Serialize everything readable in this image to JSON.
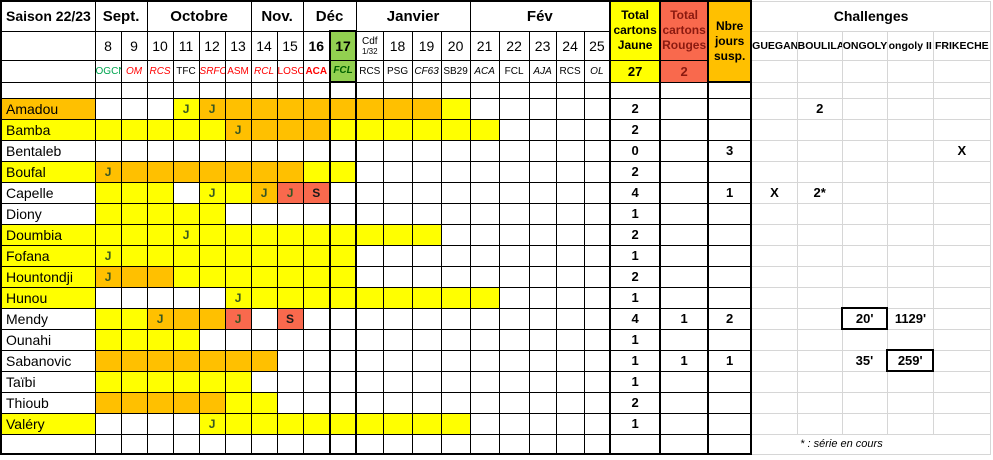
{
  "title": "Saison 22/23",
  "footnote": "* : série en cours",
  "colors": {
    "yellow": "#ffff00",
    "orange": "#ffc000",
    "red_cell": "#f9694d",
    "green_cell": "#92d050",
    "text_green": "#00a550",
    "text_red": "#ff0000",
    "text_darkgreen": "#006100",
    "text_maroon": "#8b1a10",
    "text_jglyph": "#375623"
  },
  "months": [
    {
      "label": "Sept.",
      "span": 2
    },
    {
      "label": "Octobre",
      "span": 4
    },
    {
      "label": "Nov.",
      "span": 2
    },
    {
      "label": "Déc",
      "span": 2
    },
    {
      "label": "Janvier",
      "span": 4
    },
    {
      "label": "Fév",
      "span": 5
    }
  ],
  "columns": [
    {
      "date": "8",
      "opp": "OGCN",
      "opp_color": "green"
    },
    {
      "date": "9",
      "opp": "OM",
      "opp_color": "red",
      "opp_italic": true
    },
    {
      "date": "10",
      "opp": "RCS",
      "opp_color": "red",
      "opp_italic": true
    },
    {
      "date": "11",
      "opp": "TFC",
      "opp_color": "black"
    },
    {
      "date": "12",
      "opp": "SRFC",
      "opp_color": "red",
      "opp_italic": true
    },
    {
      "date": "13",
      "opp": "ASM",
      "opp_color": "red"
    },
    {
      "date": "14",
      "opp": "RCL",
      "opp_color": "red",
      "opp_italic": true
    },
    {
      "date": "15",
      "opp": "LOSC",
      "opp_color": "red"
    },
    {
      "date": "16",
      "date_bold": true,
      "opp": "ACA",
      "opp_color": "red",
      "opp_bold": true
    },
    {
      "date": "17",
      "date_bold": true,
      "green": true,
      "opp": "FCL",
      "opp_color": "darkgreen",
      "opp_italic": true,
      "opp_bold": true
    },
    {
      "date": "Cdf",
      "date_sub": "1/32",
      "opp": "RCS",
      "opp_color": "black"
    },
    {
      "date": "18",
      "opp": "PSG",
      "opp_color": "black"
    },
    {
      "date": "19",
      "opp": "CF63",
      "opp_color": "black",
      "opp_italic": true
    },
    {
      "date": "20",
      "opp": "SB29",
      "opp_color": "black"
    },
    {
      "date": "21",
      "opp": "ACA",
      "opp_color": "black",
      "opp_italic": true
    },
    {
      "date": "22",
      "opp": "FCL",
      "opp_color": "black"
    },
    {
      "date": "23",
      "opp": "AJA",
      "opp_color": "black",
      "opp_italic": true
    },
    {
      "date": "24",
      "opp": "RCS",
      "opp_color": "black"
    },
    {
      "date": "25",
      "opp": "OL",
      "opp_color": "black",
      "opp_italic": true
    }
  ],
  "totals": {
    "jaune_header": "Total cartons Jaune",
    "rouges_header": "Total cartons Rouges",
    "nbre_header": "Nbre jours susp.",
    "jaune_total": "27",
    "rouges_total": "2"
  },
  "challenges": {
    "title": "Challenges",
    "labels": [
      "GUEGAN",
      "BOULILA",
      "ONGOLY I",
      "ongoly II",
      "FRIKECHE"
    ]
  },
  "players": [
    {
      "name": "Amadou",
      "name_bg": "o",
      "cells": "w w w yJ oJ o o o o o o o o y w w w w w",
      "jaune": "2",
      "rouges": "",
      "susp": "",
      "chal": [
        "",
        "2",
        "",
        "",
        ""
      ],
      "boxed": -1
    },
    {
      "name": "Bamba",
      "name_bg": "y",
      "cells": "y y y y y oJ o o o y y y y y y w w w w",
      "jaune": "2",
      "rouges": "",
      "susp": "",
      "chal": [
        "",
        "",
        "",
        "",
        ""
      ],
      "boxed": -1
    },
    {
      "name": "Bentaleb",
      "name_bg": "w",
      "cells": "w w w w w w w w w w w w w w w w w w w",
      "jaune": "0",
      "rouges": "",
      "susp": "3",
      "chal": [
        "",
        "",
        "",
        "",
        "X"
      ],
      "boxed": -1
    },
    {
      "name": "Boufal",
      "name_bg": "y",
      "cells": "oJ o o o o o o o y y w w w w w w w w w",
      "jaune": "2",
      "rouges": "",
      "susp": "",
      "chal": [
        "",
        "",
        "",
        "",
        ""
      ],
      "boxed": -1
    },
    {
      "name": "Capelle",
      "name_bg": "w",
      "cells": "y y y w yJ y oJ rJ rS w w w w w w w w w w",
      "jaune": "4",
      "rouges": "",
      "susp": "1",
      "chal": [
        "X",
        "2*",
        "",
        "",
        ""
      ],
      "boxed": -1
    },
    {
      "name": "Diony",
      "name_bg": "w",
      "cells": "y y y y y w w w w w w w w w w w w w w",
      "jaune": "1",
      "rouges": "",
      "susp": "",
      "chal": [
        "",
        "",
        "",
        "",
        ""
      ],
      "boxed": -1
    },
    {
      "name": "Doumbia",
      "name_bg": "y",
      "cells": "y y y yJ y y y y y y y y y w w w w w w",
      "jaune": "2",
      "rouges": "",
      "susp": "",
      "chal": [
        "",
        "",
        "",
        "",
        ""
      ],
      "boxed": -1
    },
    {
      "name": "Fofana",
      "name_bg": "y",
      "cells": "yJ y y y y y y y y y w w w w w w w w w",
      "jaune": "1",
      "rouges": "",
      "susp": "",
      "chal": [
        "",
        "",
        "",
        "",
        ""
      ],
      "boxed": -1
    },
    {
      "name": "Hountondji",
      "name_bg": "y",
      "cells": "oJ o o y y y y y y y w w w w w w w w w",
      "jaune": "2",
      "rouges": "",
      "susp": "",
      "chal": [
        "",
        "",
        "",
        "",
        ""
      ],
      "boxed": -1
    },
    {
      "name": "Hunou",
      "name_bg": "y",
      "cells": "w w w w w yJ y y y y y y y y y w w w w",
      "jaune": "1",
      "rouges": "",
      "susp": "",
      "chal": [
        "",
        "",
        "",
        "",
        ""
      ],
      "boxed": -1
    },
    {
      "name": "Mendy",
      "name_bg": "w",
      "cells": "y y oJ o o rJ w rS w w w w w w w w w w w",
      "jaune": "4",
      "rouges": "1",
      "susp": "2",
      "chal": [
        "",
        "",
        "20'",
        "1129'",
        ""
      ],
      "boxed": 2
    },
    {
      "name": "Ounahi",
      "name_bg": "w",
      "cells": "y y y y w w w w w w w w w w w w w w w",
      "jaune": "1",
      "rouges": "",
      "susp": "",
      "chal": [
        "",
        "",
        "",
        "",
        ""
      ],
      "boxed": -1
    },
    {
      "name": "Sabanovic",
      "name_bg": "w",
      "cells": "o o o o o o o w w w w w w w w w w w w",
      "jaune": "1",
      "rouges": "1",
      "susp": "1",
      "chal": [
        "",
        "",
        "35'",
        "259'",
        ""
      ],
      "boxed": 3
    },
    {
      "name": "Taïbi",
      "name_bg": "w",
      "cells": "y y y y y y w w w w w w w w w w w w w",
      "jaune": "1",
      "rouges": "",
      "susp": "",
      "chal": [
        "",
        "",
        "",
        "",
        ""
      ],
      "boxed": -1
    },
    {
      "name": "Thioub",
      "name_bg": "w",
      "cells": "o o o o o y y w w w w w w w w w w w w",
      "jaune": "2",
      "rouges": "",
      "susp": "",
      "chal": [
        "",
        "",
        "",
        "",
        ""
      ],
      "boxed": -1
    },
    {
      "name": "Valéry",
      "name_bg": "y",
      "cells": "w w w w yJ y y y y y y y y y w w w w w",
      "jaune": "1",
      "rouges": "",
      "susp": "",
      "chal": [
        "",
        "",
        "",
        "",
        ""
      ],
      "boxed": -1
    }
  ]
}
